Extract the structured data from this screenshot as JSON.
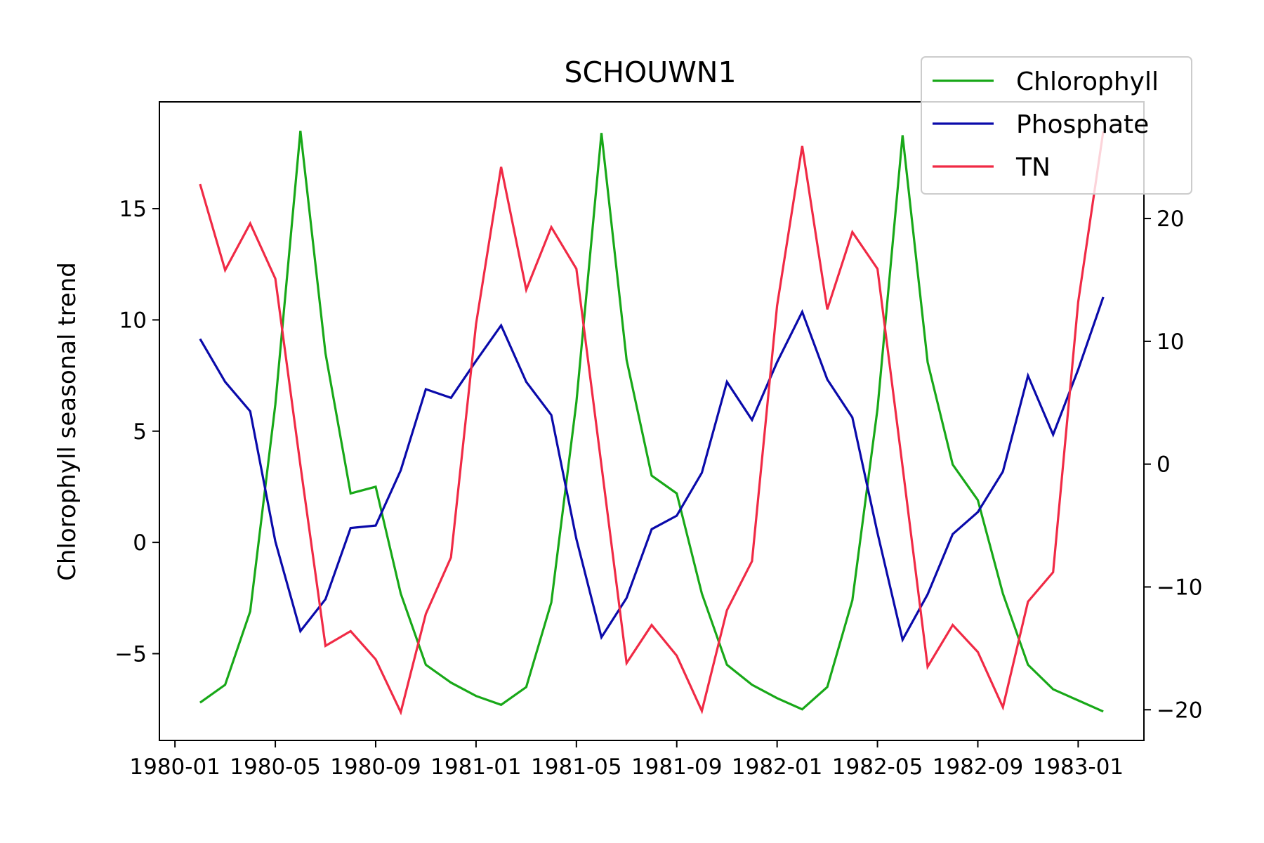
{
  "chart_data": {
    "type": "line",
    "title": "SCHOUWN1",
    "xlabel": "",
    "ylabel": "Chlorophyll seasonal trend",
    "y2label": "",
    "x": [
      "1980-02",
      "1980-03",
      "1980-04",
      "1980-05",
      "1980-06",
      "1980-07",
      "1980-08",
      "1980-09",
      "1980-10",
      "1980-11",
      "1980-12",
      "1981-01",
      "1981-02",
      "1981-03",
      "1981-04",
      "1981-05",
      "1981-06",
      "1981-07",
      "1981-08",
      "1981-09",
      "1981-10",
      "1981-11",
      "1981-12",
      "1982-01",
      "1982-02",
      "1982-03",
      "1982-04",
      "1982-05",
      "1982-06",
      "1982-07",
      "1982-08",
      "1982-09",
      "1982-10",
      "1982-11",
      "1982-12",
      "1983-01",
      "1983-02"
    ],
    "x_tick_labels": [
      "1980-01",
      "1980-05",
      "1980-09",
      "1981-01",
      "1981-05",
      "1981-09",
      "1982-01",
      "1982-05",
      "1982-09",
      "1983-01"
    ],
    "ylim": [
      -8.9,
      19.8
    ],
    "y_ticks": [
      -5,
      0,
      5,
      10,
      15
    ],
    "y_tick_labels": [
      "−5",
      "0",
      "5",
      "10",
      "15"
    ],
    "y2lim": [
      -22.5,
      29.5
    ],
    "y2_ticks": [
      -20,
      -10,
      0,
      10,
      20
    ],
    "y2_tick_labels": [
      "−20",
      "−10",
      "0",
      "10",
      "20"
    ],
    "grid": false,
    "legend": "top-right",
    "series": [
      {
        "name": "Chlorophyll",
        "axis": "left",
        "color": "#18a818",
        "values": [
          -7.2,
          -6.4,
          -3.1,
          6.2,
          18.5,
          8.5,
          2.2,
          2.5,
          -2.3,
          -5.5,
          -6.3,
          -6.9,
          -7.3,
          -6.5,
          -2.7,
          6.3,
          18.4,
          8.2,
          3.0,
          2.2,
          -2.3,
          -5.5,
          -6.4,
          -7.0,
          -7.5,
          -6.5,
          -2.6,
          6.0,
          18.3,
          8.1,
          3.5,
          1.9,
          -2.3,
          -5.5,
          -6.6,
          -7.1,
          -7.6
        ]
      },
      {
        "name": "Phosphate",
        "axis": "right",
        "color": "#0a0aaa",
        "values": [
          10.2,
          6.7,
          4.3,
          -6.3,
          -13.6,
          -11.0,
          -5.2,
          -5.0,
          -0.5,
          6.1,
          5.4,
          8.4,
          11.3,
          6.7,
          4.0,
          -6.1,
          -14.1,
          -10.9,
          -5.3,
          -4.2,
          -0.7,
          6.7,
          3.6,
          8.3,
          12.4,
          6.9,
          3.8,
          -5.6,
          -14.3,
          -10.6,
          -5.7,
          -3.9,
          -0.6,
          7.2,
          2.4,
          7.7,
          13.6
        ]
      },
      {
        "name": "TN",
        "axis": "right",
        "color": "#f02a45",
        "values": [
          22.8,
          15.8,
          19.6,
          15.1,
          -0.1,
          -14.8,
          -13.6,
          -15.9,
          -20.2,
          -12.2,
          -7.6,
          11.4,
          24.2,
          14.2,
          19.3,
          15.9,
          -0.1,
          -16.2,
          -13.1,
          -15.6,
          -20.1,
          -11.9,
          -7.9,
          12.9,
          25.9,
          12.6,
          18.9,
          15.9,
          -0.2,
          -16.5,
          -13.1,
          -15.3,
          -19.8,
          -11.2,
          -8.8,
          13.2,
          27.1
        ]
      }
    ]
  }
}
